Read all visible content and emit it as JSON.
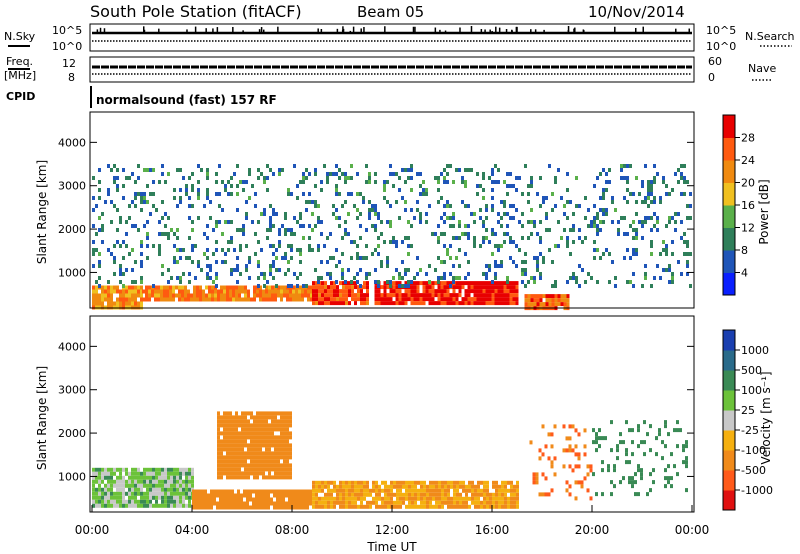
{
  "header": {
    "station": "South Pole Station (fitACF)",
    "beam": "Beam 05",
    "date": "10/Nov/2014"
  },
  "aux_panels": {
    "nsky_label": "N.Sky",
    "nsky_tick_top": "10^5",
    "nsky_tick_bottom": "10^0",
    "nsearch_label": "N.Search",
    "nsearch_tick_top": "10^5",
    "nsearch_tick_bottom": "10^0",
    "freq_label_1": "Freq.",
    "freq_label_2": "[MHz]",
    "freq_tick_top": "12",
    "freq_tick_bottom": "8",
    "nave_label": "Nave",
    "nave_tick_top": "60",
    "nave_tick_bottom": "0",
    "cpid_label": "CPID",
    "cpid_value": "normalsound (fast) 157 RF"
  },
  "colors": {
    "power_scale": [
      "#0a20ff",
      "#1f55b8",
      "#2f7f5a",
      "#5ab04a",
      "#f0c020",
      "#f08a10",
      "#ff5a10",
      "#e80000"
    ],
    "velocity_scale": [
      "#1a3fb0",
      "#2a6b8a",
      "#3a8a55",
      "#6cc23a",
      "#c8c8c8",
      "#f5b010",
      "#f08a1a",
      "#ff5a1a",
      "#e01010"
    ]
  },
  "chart_data": [
    {
      "type": "heatmap",
      "panel": "power",
      "ylabel": "Slant Range [km]",
      "ylim": [
        180,
        4700
      ],
      "yticks": [
        "1000",
        "2000",
        "3000",
        "4000"
      ],
      "colorbar": {
        "label": "Power [dB]",
        "ticks": [
          "4",
          "8",
          "12",
          "16",
          "20",
          "24",
          "28"
        ],
        "range": [
          0,
          30
        ]
      },
      "features": [
        {
          "t": [
            0.0,
            2.0
          ],
          "range": [
            200,
            700
          ],
          "value": 20
        },
        {
          "t": [
            2.0,
            8.8
          ],
          "range": [
            350,
            700
          ],
          "value": 22
        },
        {
          "t": [
            8.8,
            11.0
          ],
          "range": [
            300,
            800
          ],
          "value": 26
        },
        {
          "t": [
            11.3,
            17.0
          ],
          "range": [
            300,
            800
          ],
          "value": 28
        },
        {
          "t": [
            17.3,
            19.0
          ],
          "range": [
            200,
            500
          ],
          "value": 24
        },
        {
          "t": [
            0.0,
            24.0
          ],
          "range": [
            700,
            3500
          ],
          "value": 8
        }
      ]
    },
    {
      "type": "heatmap",
      "panel": "velocity",
      "ylabel": "Slant Range [km]",
      "xlabel": "Time UT",
      "ylim": [
        180,
        4700
      ],
      "yticks": [
        "1000",
        "2000",
        "3000",
        "4000"
      ],
      "xticks": [
        "00:00",
        "04:00",
        "08:00",
        "12:00",
        "16:00",
        "20:00",
        "00:00"
      ],
      "colorbar": {
        "label": "Velocity [m s⁻¹]",
        "ticks": [
          "1000",
          "500",
          "100",
          "25",
          "-25",
          "-100",
          "-500",
          "-1000"
        ]
      },
      "features": [
        {
          "t": [
            0.0,
            4.0
          ],
          "range": [
            300,
            1200
          ],
          "value": 50
        },
        {
          "t": [
            4.0,
            8.8
          ],
          "range": [
            300,
            700
          ],
          "value": -200
        },
        {
          "t": [
            8.8,
            17.0
          ],
          "range": [
            300,
            900
          ],
          "value": -100
        },
        {
          "t": [
            5.0,
            8.0
          ],
          "range": [
            1000,
            2500
          ],
          "value": -400
        },
        {
          "t": [
            17.5,
            20.0
          ],
          "range": [
            500,
            2200
          ],
          "value": -500
        },
        {
          "t": [
            20.0,
            23.8
          ],
          "range": [
            600,
            2300
          ],
          "value": 300
        }
      ]
    }
  ]
}
